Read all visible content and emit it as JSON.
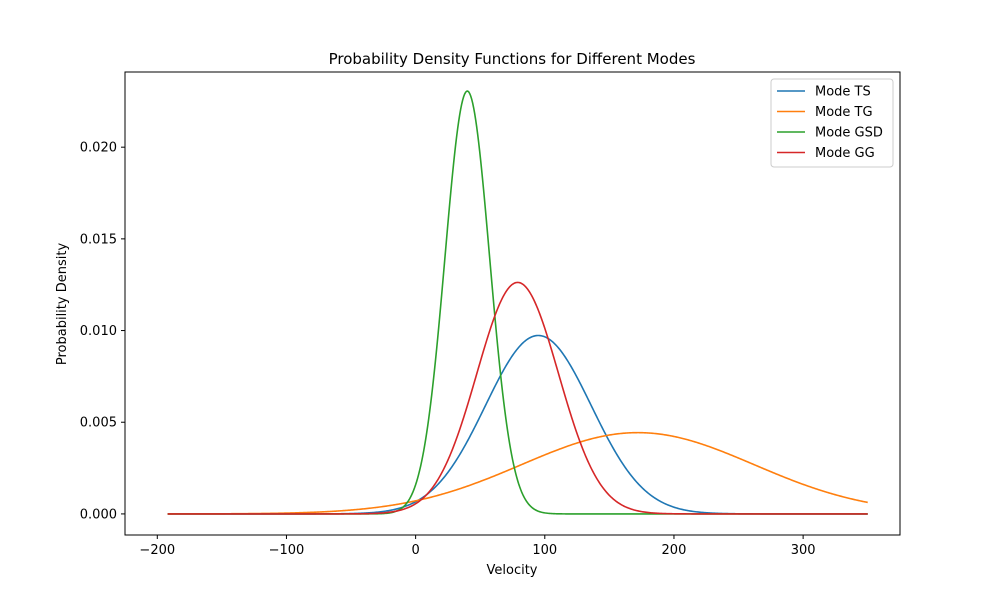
{
  "chart_data": {
    "type": "line",
    "title": "Probability Density Functions for Different Modes",
    "xlabel": "Velocity",
    "ylabel": "Probability Density",
    "xlim": [
      -225,
      375
    ],
    "ylim": [
      -0.00115,
      0.0241
    ],
    "x_ticks": [
      -200,
      -100,
      0,
      100,
      200,
      300
    ],
    "x_tick_labels": [
      "−200",
      "−100",
      "0",
      "100",
      "200",
      "300"
    ],
    "y_ticks": [
      0.0,
      0.005,
      0.01,
      0.015,
      0.02
    ],
    "y_tick_labels": [
      "0.000",
      "0.005",
      "0.010",
      "0.015",
      "0.020"
    ],
    "grid": false,
    "legend_position": "top-right",
    "series": [
      {
        "name": "Mode TS",
        "color": "#1f77b4",
        "dist": "normal",
        "mean": 95,
        "sd": 41,
        "x_range": [
          -192,
          350
        ]
      },
      {
        "name": "Mode TG",
        "color": "#ff7f0e",
        "dist": "normal",
        "mean": 172,
        "sd": 90,
        "x_range": [
          -192,
          350
        ]
      },
      {
        "name": "Mode GSD",
        "color": "#2ca02c",
        "dist": "normal",
        "mean": 40,
        "sd": 17.3,
        "x_range": [
          -192,
          350
        ]
      },
      {
        "name": "Mode GG",
        "color": "#d62728",
        "dist": "normal",
        "mean": 79,
        "sd": 31.6,
        "x_range": [
          -192,
          350
        ]
      }
    ]
  }
}
